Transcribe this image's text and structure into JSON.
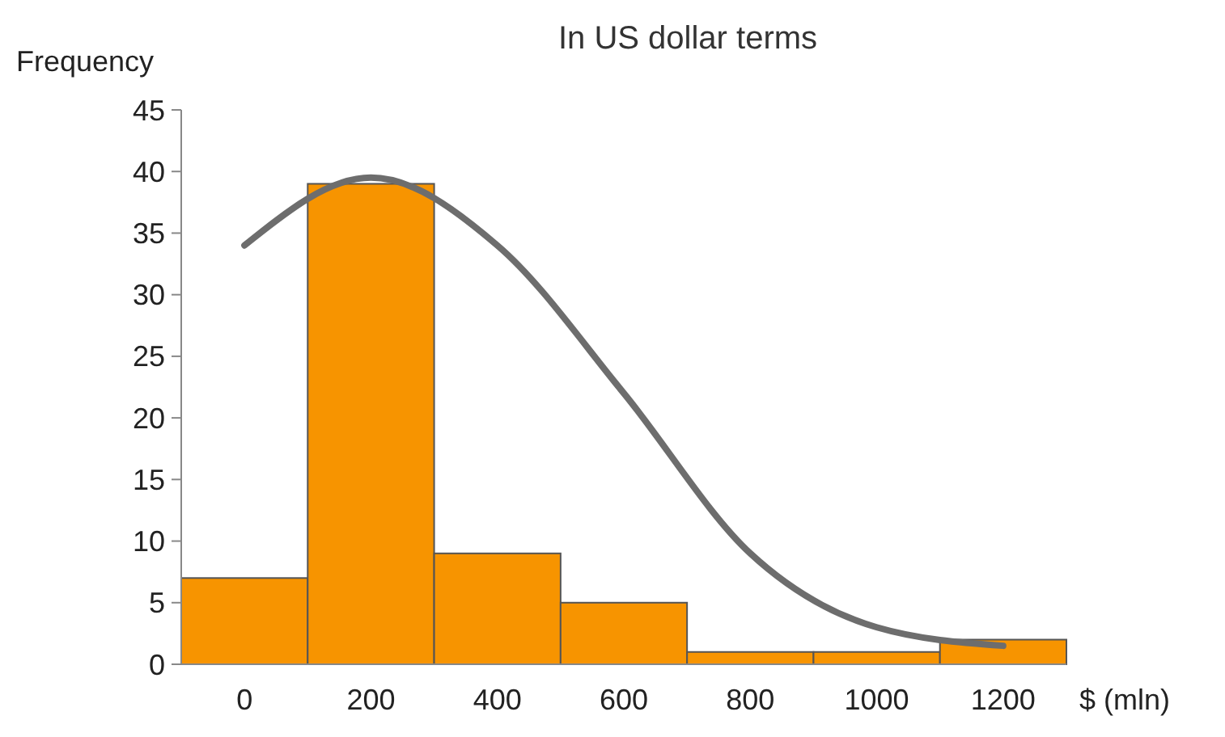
{
  "chart_data": {
    "type": "bar",
    "title": "In US dollar terms",
    "xlabel": "$ (mln)",
    "ylabel": "Frequency",
    "categories": [
      "0",
      "200",
      "400",
      "600",
      "800",
      "1000",
      "1200"
    ],
    "series": [
      {
        "color": "#f79400",
        "values": [
          7,
          39,
          9,
          5,
          1,
          1,
          2
        ]
      },
      {
        "type": "line",
        "color": "#6d6d6d",
        "values": [
          34,
          39.5,
          34,
          22,
          9,
          3,
          1.5
        ]
      }
    ],
    "ylim": [
      0,
      45
    ],
    "yticks": [
      0,
      5,
      10,
      15,
      20,
      25,
      30,
      35,
      40,
      45
    ],
    "grid": false
  }
}
